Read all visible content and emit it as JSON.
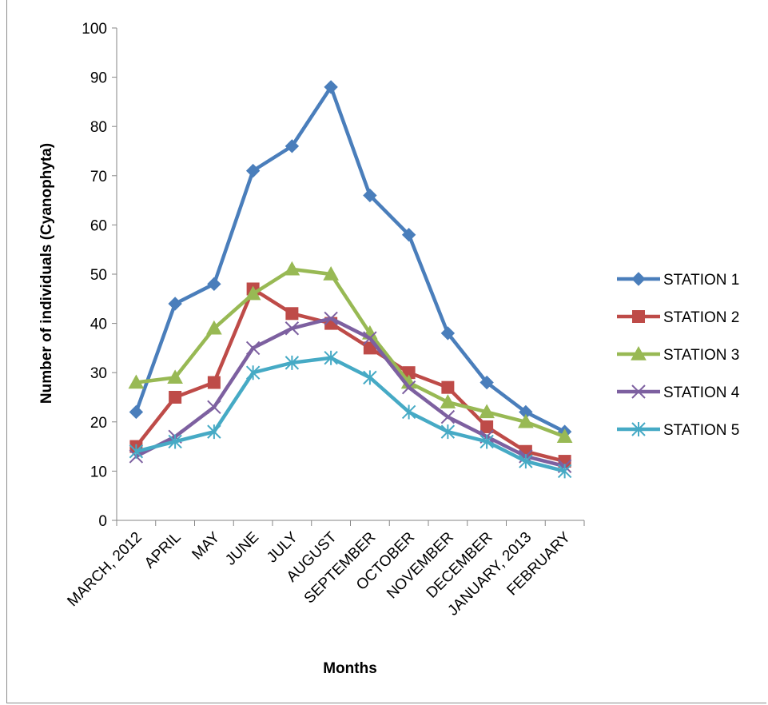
{
  "chart_data": {
    "type": "line",
    "title": "",
    "xlabel": "Months",
    "ylabel": "Number of individuals (Cyanophyta)",
    "ylim": [
      0,
      100
    ],
    "yticks": [
      0,
      10,
      20,
      30,
      40,
      50,
      60,
      70,
      80,
      90,
      100
    ],
    "grid": false,
    "legend_position": "right",
    "categories": [
      "MARCH, 2012",
      "APRIL",
      "MAY",
      "JUNE",
      "JULY",
      "AUGUST",
      "SEPTEMBER",
      "OCTOBER",
      "NOVEMBER",
      "DECEMBER",
      "JANUARY, 2013",
      "FEBRUARY"
    ],
    "series": [
      {
        "name": "STATION 1",
        "color": "#4a7ebb",
        "marker": "diamond",
        "values": [
          22,
          44,
          48,
          71,
          76,
          88,
          66,
          58,
          38,
          28,
          22,
          18
        ]
      },
      {
        "name": "STATION 2",
        "color": "#be4b48",
        "marker": "square",
        "values": [
          15,
          25,
          28,
          47,
          42,
          40,
          35,
          30,
          27,
          19,
          14,
          12
        ]
      },
      {
        "name": "STATION 3",
        "color": "#98b954",
        "marker": "triangle",
        "values": [
          28,
          29,
          39,
          46,
          51,
          50,
          38,
          28,
          24,
          22,
          20,
          17
        ]
      },
      {
        "name": "STATION 4",
        "color": "#7d60a0",
        "marker": "x",
        "values": [
          13,
          17,
          23,
          35,
          39,
          41,
          37,
          27,
          21,
          17,
          13,
          11
        ]
      },
      {
        "name": "STATION 5",
        "color": "#46aac5",
        "marker": "star",
        "values": [
          14,
          16,
          18,
          30,
          32,
          33,
          29,
          22,
          18,
          16,
          12,
          10
        ]
      }
    ]
  }
}
